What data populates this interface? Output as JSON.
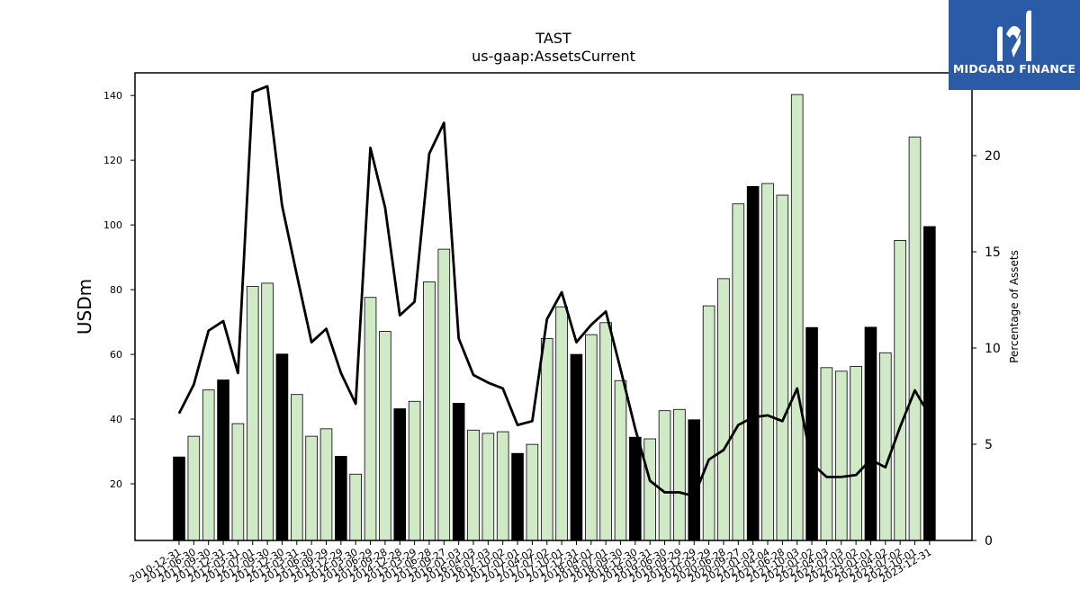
{
  "brand": {
    "name": "MIDGARD FINANCE",
    "icon": "midgard-m-icon",
    "background": "#2b5aa6"
  },
  "chart_data": {
    "type": "bar",
    "title": "TAST",
    "subtitle": "us-gaap:AssetsCurrent",
    "ylabel": "USDm",
    "y2label": "Percentage of Assets",
    "ylim": [
      2.5,
      147
    ],
    "y2lim": [
      0,
      24.3
    ],
    "yticks": [
      20,
      40,
      60,
      80,
      100,
      120,
      140
    ],
    "y2ticks": [
      0,
      5,
      10,
      15,
      20
    ],
    "colors": {
      "bar": "#d0e9c6",
      "highlight": "#000000",
      "line": "#000000"
    },
    "categories": [
      "2010-12-31",
      "2011-06-30",
      "2011-09-30",
      "2011-12-31",
      "2012-03-31",
      "2012-07-01",
      "2012-09-30",
      "2012-12-30",
      "2013-03-31",
      "2013-06-30",
      "2013-09-29",
      "2013-12-29",
      "2014-03-30",
      "2014-06-29",
      "2014-09-28",
      "2014-12-28",
      "2015-03-29",
      "2015-06-28",
      "2015-09-27",
      "2016-01-03",
      "2016-04-03",
      "2016-07-03",
      "2016-10-02",
      "2017-01-01",
      "2017-04-02",
      "2017-07-02",
      "2017-10-01",
      "2017-12-31",
      "2018-04-01",
      "2018-07-01",
      "2018-09-30",
      "2018-12-30",
      "2019-03-31",
      "2019-06-30",
      "2019-09-29",
      "2019-12-29",
      "2020-03-29",
      "2020-06-28",
      "2020-09-27",
      "2021-01-03",
      "2021-04-04",
      "2021-06-28",
      "2021-10-03",
      "2022-01-02",
      "2022-04-03",
      "2022-07-03",
      "2022-10-02",
      "2023-01-01",
      "2023-04-02",
      "2023-07-02",
      "2023-10-01",
      "2023-12-31"
    ],
    "x_tick_labels": [
      "2010-12-31",
      "2011-06-30",
      "2011-09-30",
      "2011-12-31",
      "2012-03-31",
      "2012-07-01",
      "2012-09-30",
      "2012-12-30",
      "2013-03-31",
      "2013-06-30",
      "2013-09-29",
      "2013-12-29",
      "2014-03-30",
      "2014-06-29",
      "2014-09-28",
      "2014-12-28",
      "2015-03-29",
      "2015-06-28",
      "2015-09-27",
      "2016-01-03",
      "2016-04-03",
      "2016-07-03",
      "2016-10-02",
      "2017-01-01",
      "2017-04-02",
      "2017-07-02",
      "2017-10-01",
      "2017-12-31",
      "2018-04-01",
      "2018-07-01",
      "2018-09-30",
      "2018-12-30",
      "2019-03-31",
      "2019-06-30",
      "2019-09-29",
      "2019-12-29",
      "2020-03-29",
      "2020-06-28",
      "2020-09-27",
      "2021-01-03",
      "2021-04-04",
      "2021-06-28",
      "2021-10-03",
      "2022-01-02",
      "2022-04-03",
      "2022-07-03",
      "2022-10-02",
      "2023-01-01",
      "2023-04-02",
      "2023-07-02",
      "2023-10-01",
      "2023-12-31"
    ],
    "series": [
      {
        "type": "bar",
        "values": [
          28.3,
          34.7,
          49.0,
          52.1,
          38.6,
          81.0,
          82.0,
          60.1,
          47.6,
          34.7,
          37.0,
          28.5,
          23.0,
          77.6,
          67.1,
          43.2,
          45.5,
          82.4,
          92.5,
          44.9,
          36.6,
          35.6,
          36.1,
          29.4,
          32.2,
          64.9,
          74.7,
          60.0,
          66.1,
          69.8,
          51.9,
          34.4,
          33.9,
          42.6,
          43.0,
          39.8,
          75.0,
          83.4,
          106.5,
          111.9,
          112.8,
          109.2,
          140.3,
          68.3,
          55.9,
          54.8,
          56.3,
          68.4,
          60.5,
          95.2,
          127.2,
          99.5
        ],
        "highlight": [
          true,
          false,
          false,
          true,
          false,
          false,
          false,
          true,
          false,
          false,
          false,
          true,
          false,
          false,
          false,
          true,
          false,
          false,
          false,
          true,
          false,
          false,
          false,
          true,
          false,
          false,
          false,
          true,
          false,
          false,
          false,
          true,
          false,
          false,
          false,
          true,
          false,
          false,
          false,
          true,
          false,
          false,
          false,
          true,
          false,
          false,
          false,
          true,
          false,
          false,
          false,
          true
        ]
      },
      {
        "type": "line",
        "axis": "right",
        "values": [
          6.6,
          8.1,
          10.9,
          11.4,
          8.7,
          23.3,
          23.6,
          17.4,
          13.8,
          10.3,
          11.0,
          8.7,
          7.1,
          20.4,
          17.3,
          11.7,
          12.4,
          20.1,
          21.7,
          10.5,
          8.6,
          8.2,
          7.9,
          6.0,
          6.2,
          11.5,
          12.9,
          10.3,
          11.2,
          11.9,
          8.9,
          5.8,
          3.1,
          2.5,
          2.5,
          2.3,
          4.2,
          4.7,
          6.0,
          6.4,
          6.5,
          6.2,
          7.9,
          4.0,
          3.3,
          3.3,
          3.4,
          4.2,
          3.8,
          5.9,
          7.8,
          6.5
        ]
      }
    ]
  }
}
